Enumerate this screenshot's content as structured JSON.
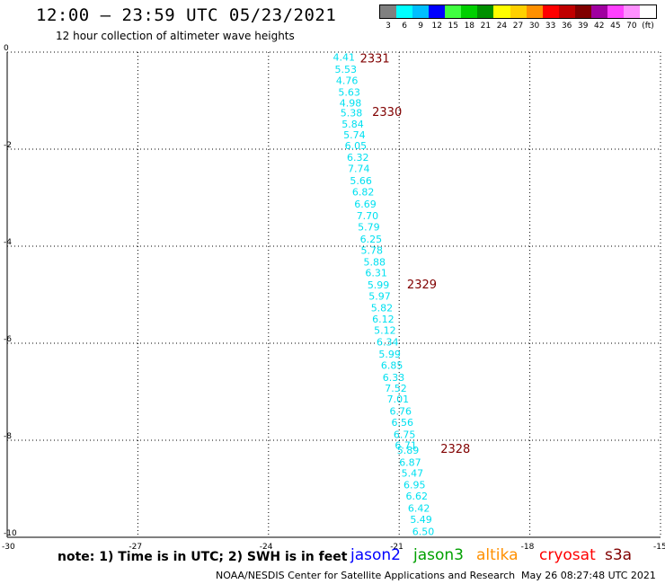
{
  "header": {
    "title": "12:00 – 23:59 UTC 05/23/2021",
    "subtitle": "12 hour collection of altimeter wave heights"
  },
  "legend_scale": {
    "colors": [
      "#808080",
      "#00ffff",
      "#00bfff",
      "#0000ff",
      "#40ff40",
      "#00d000",
      "#009000",
      "#ffff00",
      "#ffd000",
      "#ff9000",
      "#ff0000",
      "#c00000",
      "#800000",
      "#a000a0",
      "#ff40ff",
      "#ff90ff",
      "#ffffff"
    ],
    "labels": [
      "3",
      "6",
      "9",
      "12",
      "15",
      "18",
      "21",
      "24",
      "27",
      "30",
      "33",
      "36",
      "39",
      "42",
      "45",
      "70",
      "(ft)"
    ]
  },
  "chart_data": {
    "type": "scatter",
    "xlim": [
      -30,
      -15
    ],
    "ylim": [
      -10,
      0
    ],
    "x_ticks": [
      "-30",
      "-27",
      "-24",
      "-21",
      "-18",
      "-15"
    ],
    "y_ticks": [
      "0",
      "-2",
      "-4",
      "-6",
      "-8",
      "-10"
    ],
    "grid": true,
    "point_color": "#00e0f0",
    "pass_label_color": "#800000",
    "points": [
      {
        "x": -22.52,
        "y": -0.1,
        "label": "4.41"
      },
      {
        "x": -22.48,
        "y": -0.35,
        "label": "5.53"
      },
      {
        "x": -22.45,
        "y": -0.58,
        "label": "4.76"
      },
      {
        "x": -22.4,
        "y": -0.82,
        "label": "5.63"
      },
      {
        "x": -22.37,
        "y": -1.05,
        "label": "4.98"
      },
      {
        "x": -22.35,
        "y": -1.25,
        "label": "5.38"
      },
      {
        "x": -22.32,
        "y": -1.48,
        "label": "5.84"
      },
      {
        "x": -22.28,
        "y": -1.7,
        "label": "5.74"
      },
      {
        "x": -22.25,
        "y": -1.93,
        "label": "6.05"
      },
      {
        "x": -22.2,
        "y": -2.17,
        "label": "6.32"
      },
      {
        "x": -22.18,
        "y": -2.4,
        "label": "7.74"
      },
      {
        "x": -22.13,
        "y": -2.65,
        "label": "5.66"
      },
      {
        "x": -22.08,
        "y": -2.88,
        "label": "6.82"
      },
      {
        "x": -22.03,
        "y": -3.13,
        "label": "6.69"
      },
      {
        "x": -21.98,
        "y": -3.37,
        "label": "7.70"
      },
      {
        "x": -21.95,
        "y": -3.6,
        "label": "5.79"
      },
      {
        "x": -21.9,
        "y": -3.85,
        "label": "6.25"
      },
      {
        "x": -21.88,
        "y": -4.08,
        "label": "5.78"
      },
      {
        "x": -21.82,
        "y": -4.32,
        "label": "5.88"
      },
      {
        "x": -21.78,
        "y": -4.55,
        "label": "6.31"
      },
      {
        "x": -21.73,
        "y": -4.8,
        "label": "5.99"
      },
      {
        "x": -21.7,
        "y": -5.03,
        "label": "5.97"
      },
      {
        "x": -21.65,
        "y": -5.27,
        "label": "5.82"
      },
      {
        "x": -21.62,
        "y": -5.5,
        "label": "6.12"
      },
      {
        "x": -21.58,
        "y": -5.73,
        "label": "5.12"
      },
      {
        "x": -21.52,
        "y": -5.97,
        "label": "6.34"
      },
      {
        "x": -21.47,
        "y": -6.22,
        "label": "5.99"
      },
      {
        "x": -21.42,
        "y": -6.45,
        "label": "6.85"
      },
      {
        "x": -21.38,
        "y": -6.7,
        "label": "6.33"
      },
      {
        "x": -21.33,
        "y": -6.93,
        "label": "7.52"
      },
      {
        "x": -21.28,
        "y": -7.15,
        "label": "7.01"
      },
      {
        "x": -21.22,
        "y": -7.4,
        "label": "6.76"
      },
      {
        "x": -21.18,
        "y": -7.63,
        "label": "6.56"
      },
      {
        "x": -21.13,
        "y": -7.88,
        "label": "6.75"
      },
      {
        "x": -21.1,
        "y": -8.1,
        "label": "6.71"
      },
      {
        "x": -21.05,
        "y": -8.2,
        "label": "5.89"
      },
      {
        "x": -21.0,
        "y": -8.45,
        "label": "6.87"
      },
      {
        "x": -20.95,
        "y": -8.68,
        "label": "5.47"
      },
      {
        "x": -20.9,
        "y": -8.92,
        "label": "6.95"
      },
      {
        "x": -20.85,
        "y": -9.15,
        "label": "6.62"
      },
      {
        "x": -20.8,
        "y": -9.4,
        "label": "6.42"
      },
      {
        "x": -20.75,
        "y": -9.63,
        "label": "5.49"
      },
      {
        "x": -20.7,
        "y": -9.88,
        "label": "6.50"
      }
    ],
    "pass_labels": [
      {
        "x": -21.9,
        "y": -0.12,
        "text": "2331"
      },
      {
        "x": -21.62,
        "y": -1.22,
        "text": "2330"
      },
      {
        "x": -20.82,
        "y": -4.78,
        "text": "2329"
      },
      {
        "x": -20.05,
        "y": -8.17,
        "text": "2328"
      }
    ]
  },
  "footer": {
    "note": "note: 1) Time is in UTC; 2) SWH is in feet",
    "missions": [
      {
        "name": "jason2",
        "color": "#0000ff"
      },
      {
        "name": "jason3",
        "color": "#00a000"
      },
      {
        "name": "altika",
        "color": "#ff9000"
      },
      {
        "name": "cryosat",
        "color": "#ff0000"
      },
      {
        "name": "s3a",
        "color": "#800000"
      }
    ],
    "credit": "NOAA/NESDIS Center for Satellite Applications and Research",
    "timestamp": "May 26 08:27:48 UTC 2021"
  }
}
